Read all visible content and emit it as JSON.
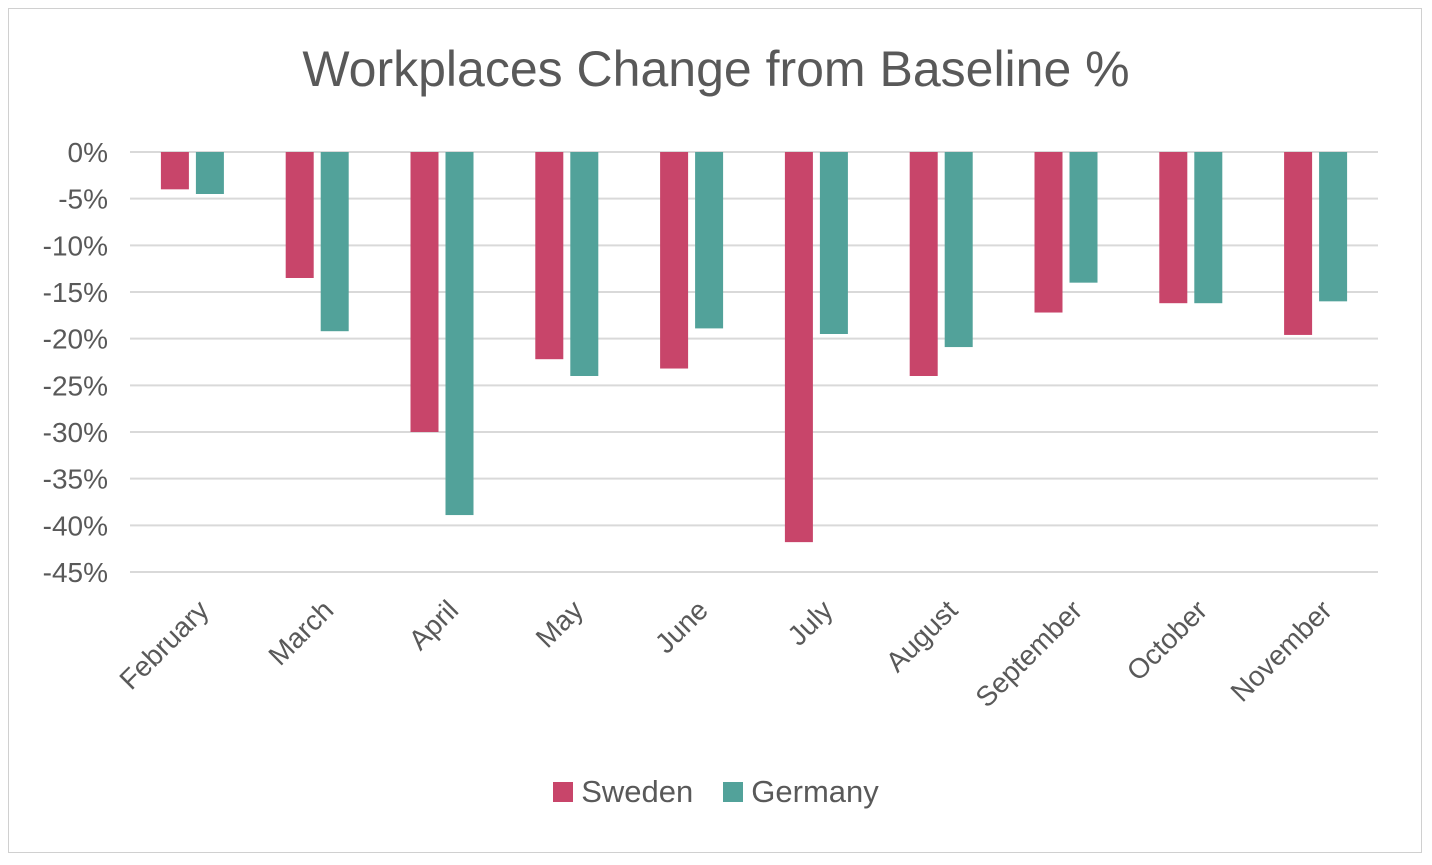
{
  "chart_data": {
    "type": "bar",
    "title": "Workplaces Change from Baseline %",
    "categories": [
      "February",
      "March",
      "April",
      "May",
      "June",
      "July",
      "August",
      "September",
      "October",
      "November"
    ],
    "series": [
      {
        "name": "Sweden",
        "color": "#c8456a",
        "values": [
          -4,
          -13.5,
          -30,
          -22.2,
          -23.2,
          -41.8,
          -24,
          -17.2,
          -16.2,
          -19.6
        ]
      },
      {
        "name": "Germany",
        "color": "#52a29a",
        "values": [
          -4.5,
          -19.2,
          -38.9,
          -24,
          -18.9,
          -19.5,
          -20.9,
          -14,
          -16.2,
          -16
        ]
      }
    ],
    "ylim": [
      -45,
      0
    ],
    "yticks": [
      0,
      -5,
      -10,
      -15,
      -20,
      -25,
      -30,
      -35,
      -40,
      -45
    ],
    "ytick_labels": [
      "0%",
      "-5%",
      "-10%",
      "-15%",
      "-20%",
      "-25%",
      "-30%",
      "-35%",
      "-40%",
      "-45%"
    ],
    "xlabel": "",
    "ylabel": "",
    "grid": true,
    "legend_position": "bottom"
  }
}
